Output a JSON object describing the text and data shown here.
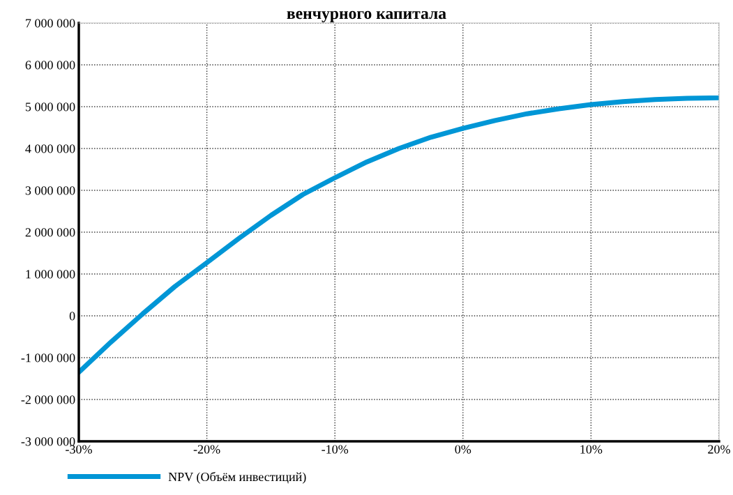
{
  "chart_data": {
    "type": "line",
    "title": "венчурного капитала",
    "x": [
      -30,
      -27.5,
      -25,
      -22.5,
      -20,
      -17.5,
      -15,
      -12.5,
      -10,
      -7.5,
      -5,
      -2.5,
      0,
      2.5,
      5,
      7.5,
      10,
      12.5,
      15,
      17.5,
      20
    ],
    "series": [
      {
        "name": "NPV (Объём инвестиций)",
        "color": "#0096d6",
        "values": [
          -1350000,
          -630000,
          50000,
          700000,
          1270000,
          1850000,
          2400000,
          2900000,
          3300000,
          3680000,
          4000000,
          4270000,
          4480000,
          4670000,
          4830000,
          4950000,
          5050000,
          5120000,
          5170000,
          5200000,
          5210000
        ]
      }
    ],
    "xlim": [
      -30,
      20
    ],
    "xticks": [
      {
        "value": -30,
        "label": "-30%"
      },
      {
        "value": -20,
        "label": "-20%"
      },
      {
        "value": -10,
        "label": "-10%"
      },
      {
        "value": 0,
        "label": "0%"
      },
      {
        "value": 10,
        "label": "10%"
      },
      {
        "value": 20,
        "label": "20%"
      }
    ],
    "ylim": [
      -3000000,
      7000000
    ],
    "yticks": [
      {
        "value": -3000000,
        "label": "-3 000 000"
      },
      {
        "value": -2000000,
        "label": "-2 000 000"
      },
      {
        "value": -1000000,
        "label": "-1 000 000"
      },
      {
        "value": 0,
        "label": "0"
      },
      {
        "value": 1000000,
        "label": "1 000 000"
      },
      {
        "value": 2000000,
        "label": "2 000 000"
      },
      {
        "value": 3000000,
        "label": "3 000 000"
      },
      {
        "value": 4000000,
        "label": "4 000 000"
      },
      {
        "value": 5000000,
        "label": "5 000 000"
      },
      {
        "value": 6000000,
        "label": "6 000 000"
      },
      {
        "value": 7000000,
        "label": "7 000 000"
      }
    ],
    "grid": true,
    "legend": "bottom left",
    "marker": "none",
    "line_style": "solid"
  }
}
